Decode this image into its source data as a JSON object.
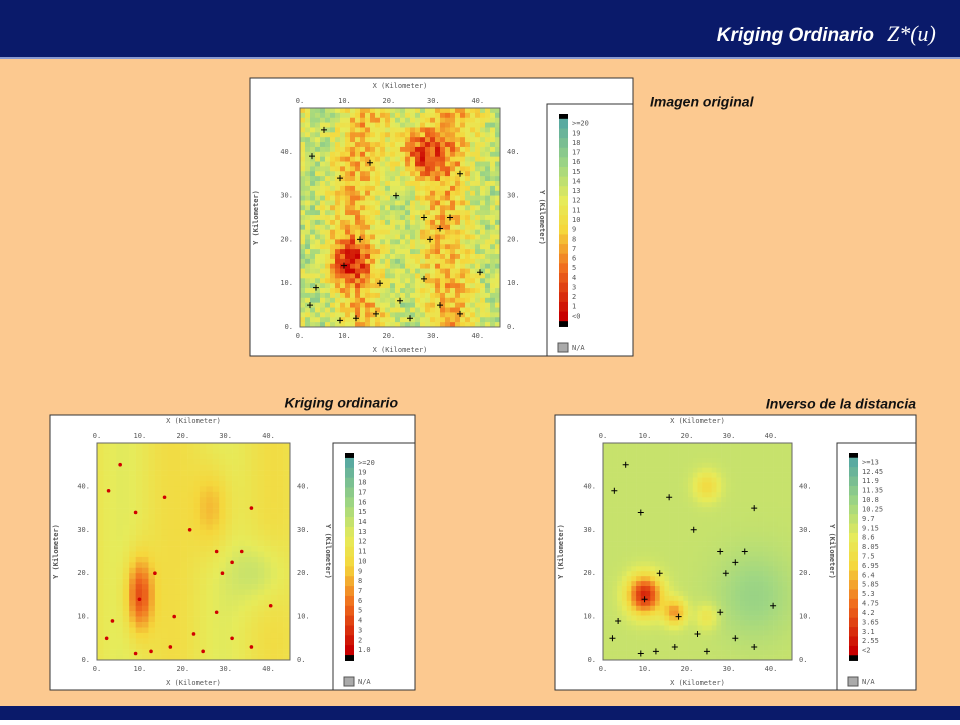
{
  "header": {
    "title": "Kriging Ordinario",
    "formula": "Z*(u)"
  },
  "panels": [
    {
      "label": "Imagen original",
      "x_axis_label": "X (Kilometer)",
      "y_axis_label": "Y (Kilometer)",
      "xticks": [
        "0.",
        "10.",
        "20.",
        "30.",
        "40."
      ],
      "yticks": [
        "0.",
        "10.",
        "20.",
        "30.",
        "40."
      ],
      "colorbar": [
        ">=20",
        "19",
        "18",
        "17",
        "16",
        "15",
        "14",
        "13",
        "12",
        "11",
        "10",
        "9",
        "8",
        "7",
        "6",
        "5",
        "4",
        "3",
        "2",
        "1",
        "<0"
      ],
      "na_label": "N/A"
    },
    {
      "label": "Kriging ordinario",
      "x_axis_label": "X (Kilometer)",
      "y_axis_label": "Y (Kilometer)",
      "xticks": [
        "0.",
        "10.",
        "20.",
        "30.",
        "40."
      ],
      "yticks": [
        "0.",
        "10.",
        "20.",
        "30.",
        "40."
      ],
      "colorbar": [
        ">=20",
        "19",
        "18",
        "17",
        "16",
        "15",
        "14",
        "13",
        "12",
        "11",
        "10",
        "9",
        "8",
        "7",
        "6",
        "5",
        "4",
        "3",
        "2",
        "1.0"
      ],
      "na_label": "N/A"
    },
    {
      "label": "Inverso de la distancia",
      "x_axis_label": "X (Kilometer)",
      "y_axis_label": "Y (Kilometer)",
      "xticks": [
        "0.",
        "10.",
        "20.",
        "30.",
        "40."
      ],
      "yticks": [
        "0.",
        "10.",
        "20.",
        "30.",
        "40."
      ],
      "colorbar": [
        ">=13",
        "12.45",
        "11.9",
        "11.35",
        "10.8",
        "10.25",
        "9.7",
        "9.15",
        "8.6",
        "8.05",
        "7.5",
        "6.95",
        "6.4",
        "5.85",
        "5.3",
        "4.75",
        "4.2",
        "3.65",
        "3.1",
        "2.55",
        "<2"
      ],
      "na_label": "N/A"
    }
  ]
}
